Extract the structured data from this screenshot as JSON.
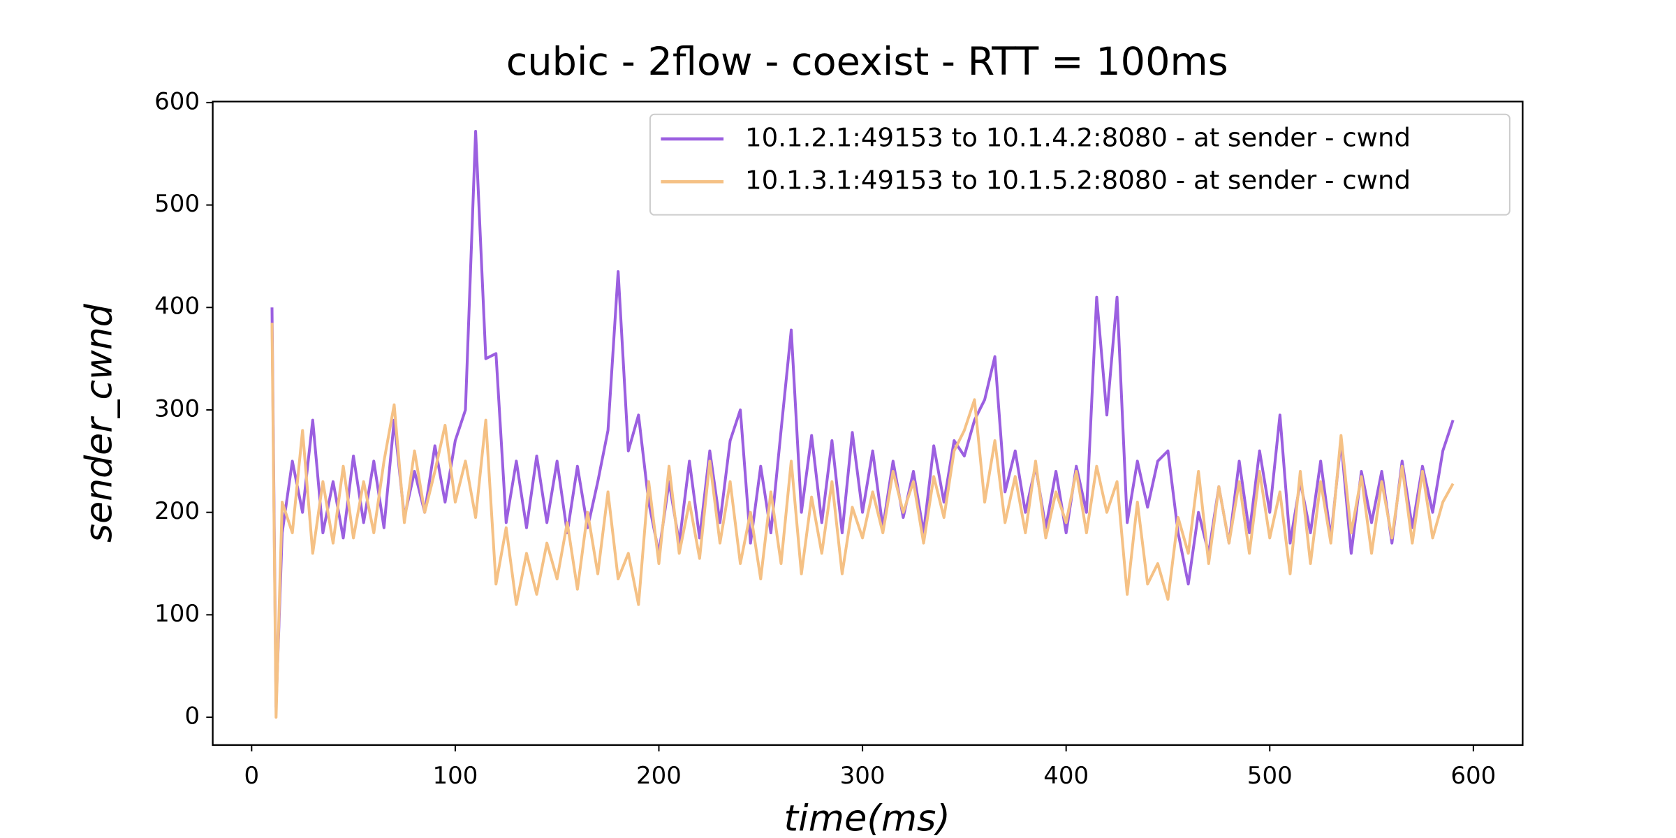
{
  "chart_data": {
    "type": "line",
    "title": "cubic - 2flow - coexist - RTT = 100ms",
    "xlabel": "time(ms)",
    "ylabel": "sender_cwnd",
    "x": [
      10,
      12,
      15,
      20,
      25,
      30,
      35,
      40,
      45,
      50,
      55,
      60,
      65,
      70,
      75,
      80,
      85,
      90,
      95,
      100,
      105,
      110,
      115,
      120,
      125,
      130,
      135,
      140,
      145,
      150,
      155,
      160,
      165,
      170,
      175,
      180,
      185,
      190,
      195,
      200,
      205,
      210,
      215,
      220,
      225,
      230,
      235,
      240,
      245,
      250,
      255,
      260,
      265,
      270,
      275,
      280,
      285,
      290,
      295,
      300,
      305,
      310,
      315,
      320,
      325,
      330,
      335,
      340,
      345,
      350,
      355,
      360,
      365,
      370,
      375,
      380,
      385,
      390,
      395,
      400,
      405,
      410,
      415,
      420,
      425,
      430,
      435,
      440,
      445,
      450,
      455,
      460,
      465,
      470,
      475,
      480,
      485,
      490,
      495,
      500,
      505,
      510,
      515,
      520,
      525,
      530,
      535,
      540,
      545,
      550,
      555,
      560,
      565,
      570,
      575,
      580,
      585,
      590
    ],
    "series": [
      {
        "name": "10.1.2.1:49153 to 10.1.4.2:8080 - at sender - cwnd",
        "color": "#9b5fe0",
        "values": [
          400,
          10,
          180,
          250,
          200,
          290,
          180,
          230,
          175,
          255,
          190,
          250,
          185,
          290,
          195,
          240,
          200,
          265,
          210,
          270,
          300,
          572,
          350,
          355,
          190,
          250,
          185,
          255,
          190,
          250,
          180,
          245,
          185,
          230,
          280,
          435,
          260,
          295,
          210,
          160,
          230,
          170,
          250,
          175,
          260,
          190,
          270,
          300,
          170,
          245,
          180,
          280,
          378,
          200,
          275,
          190,
          270,
          180,
          278,
          200,
          260,
          185,
          250,
          195,
          240,
          180,
          265,
          210,
          270,
          255,
          290,
          310,
          352,
          220,
          260,
          200,
          245,
          185,
          240,
          180,
          245,
          200,
          410,
          295,
          410,
          190,
          250,
          205,
          250,
          260,
          180,
          130,
          200,
          160,
          225,
          170,
          250,
          180,
          260,
          200,
          295,
          170,
          230,
          180,
          250,
          175,
          270,
          160,
          240,
          190,
          240,
          170,
          250,
          185,
          245,
          200,
          260,
          290
        ]
      },
      {
        "name": "10.1.3.1:49153 to 10.1.5.2:8080 - at sender - cwnd",
        "color": "#f5c185",
        "values": [
          385,
          0,
          210,
          180,
          280,
          160,
          230,
          170,
          245,
          175,
          230,
          180,
          250,
          305,
          190,
          260,
          200,
          240,
          285,
          210,
          250,
          195,
          290,
          130,
          185,
          110,
          160,
          120,
          170,
          135,
          190,
          125,
          200,
          140,
          220,
          135,
          160,
          110,
          230,
          150,
          245,
          160,
          210,
          155,
          250,
          170,
          230,
          150,
          200,
          135,
          220,
          150,
          250,
          140,
          215,
          160,
          230,
          140,
          205,
          175,
          220,
          180,
          240,
          200,
          230,
          170,
          235,
          195,
          260,
          280,
          310,
          210,
          270,
          190,
          235,
          180,
          250,
          175,
          220,
          190,
          240,
          180,
          245,
          200,
          230,
          120,
          210,
          130,
          150,
          115,
          195,
          160,
          240,
          150,
          225,
          170,
          230,
          160,
          240,
          175,
          220,
          140,
          240,
          150,
          230,
          170,
          275,
          180,
          235,
          160,
          230,
          175,
          245,
          170,
          240,
          175,
          210,
          228
        ]
      }
    ],
    "xlim": [
      -19.1,
      624.2
    ],
    "ylim": [
      -27.1,
      601
    ],
    "xticks": [
      0,
      100,
      200,
      300,
      400,
      500,
      600
    ],
    "yticks": [
      0,
      100,
      200,
      300,
      400,
      500,
      600
    ],
    "legend": "upper right",
    "grid": false
  }
}
